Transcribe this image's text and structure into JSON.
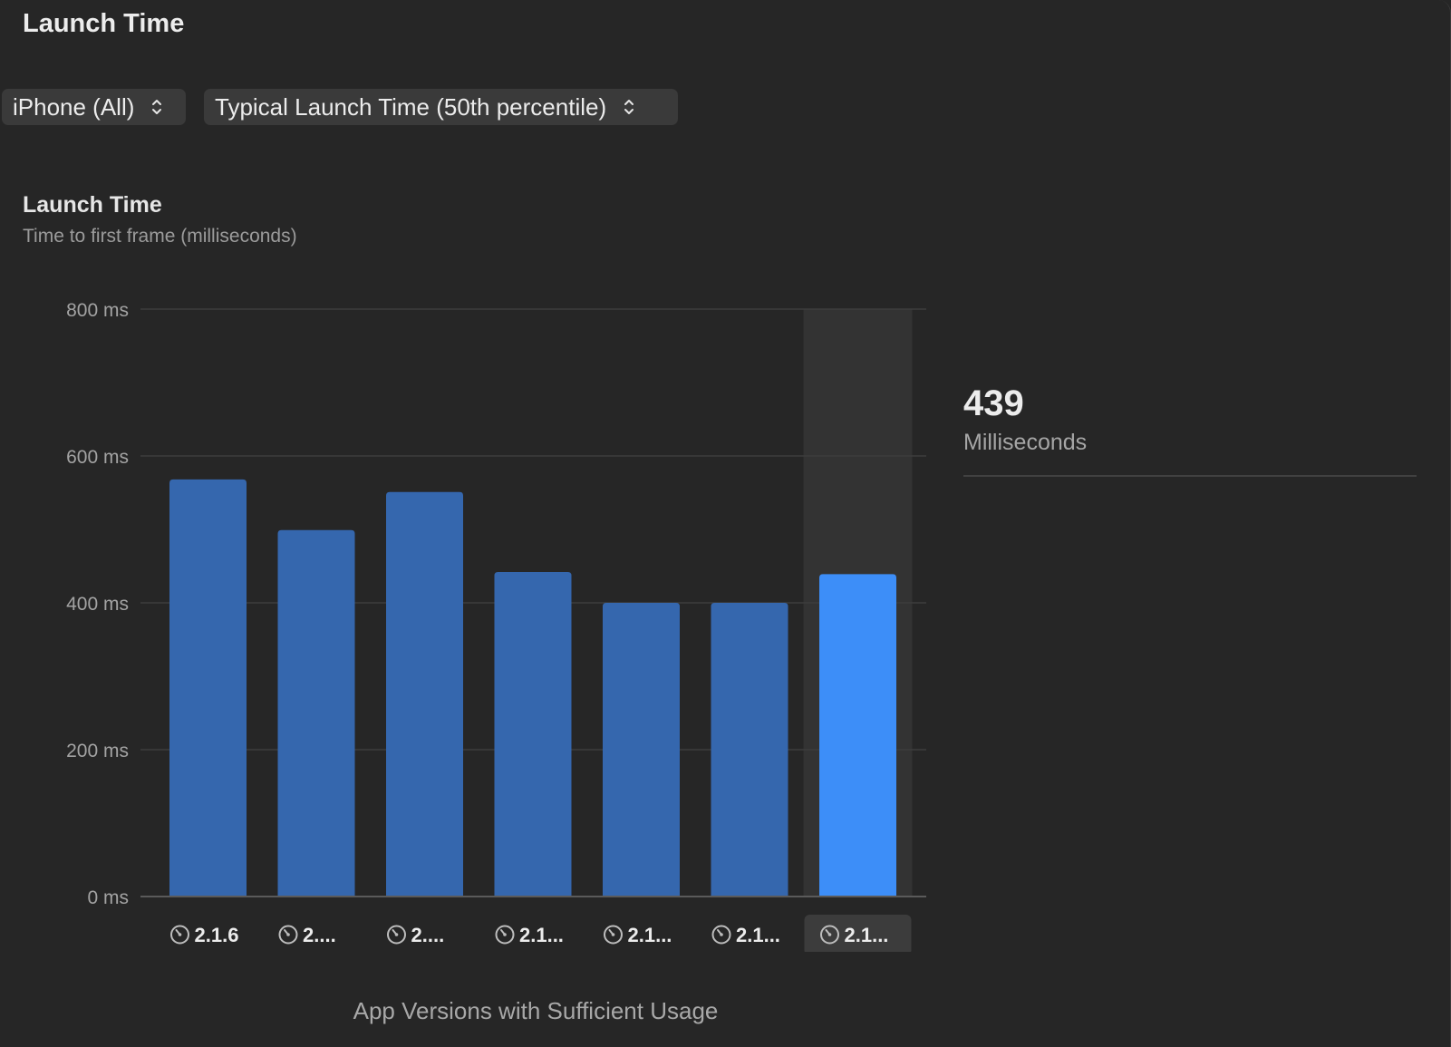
{
  "header": {
    "title": "Launch Time"
  },
  "filters": {
    "device": "iPhone (All)",
    "metric": "Typical Launch Time (50th percentile)"
  },
  "chart_data": {
    "type": "bar",
    "title": "Launch Time",
    "subtitle": "Time to first frame (milliseconds)",
    "xlabel": "App Versions with Sufficient Usage",
    "ylabel": "",
    "ylim": [
      0,
      800
    ],
    "y_ticks": [
      {
        "value": 0,
        "label": "0 ms"
      },
      {
        "value": 200,
        "label": "200 ms"
      },
      {
        "value": 400,
        "label": "400 ms"
      },
      {
        "value": 600,
        "label": "600 ms"
      },
      {
        "value": 800,
        "label": "800 ms"
      }
    ],
    "categories": [
      "2.1.6",
      "2....",
      "2....",
      "2.1...",
      "2.1...",
      "2.1...",
      "2.1..."
    ],
    "values": [
      568,
      499,
      551,
      442,
      400,
      400,
      439
    ],
    "selected_index": 6,
    "grid": true,
    "colors": {
      "bar": "#3567ae",
      "bar_selected": "#3d8ef8",
      "selection_band": "#333333",
      "grid": "#3d3d3d",
      "axis": "#5a5a5a",
      "label_tile": "#3c3c3c"
    },
    "category_icon": "gauge-icon"
  },
  "detail": {
    "value": "439",
    "unit": "Milliseconds"
  }
}
